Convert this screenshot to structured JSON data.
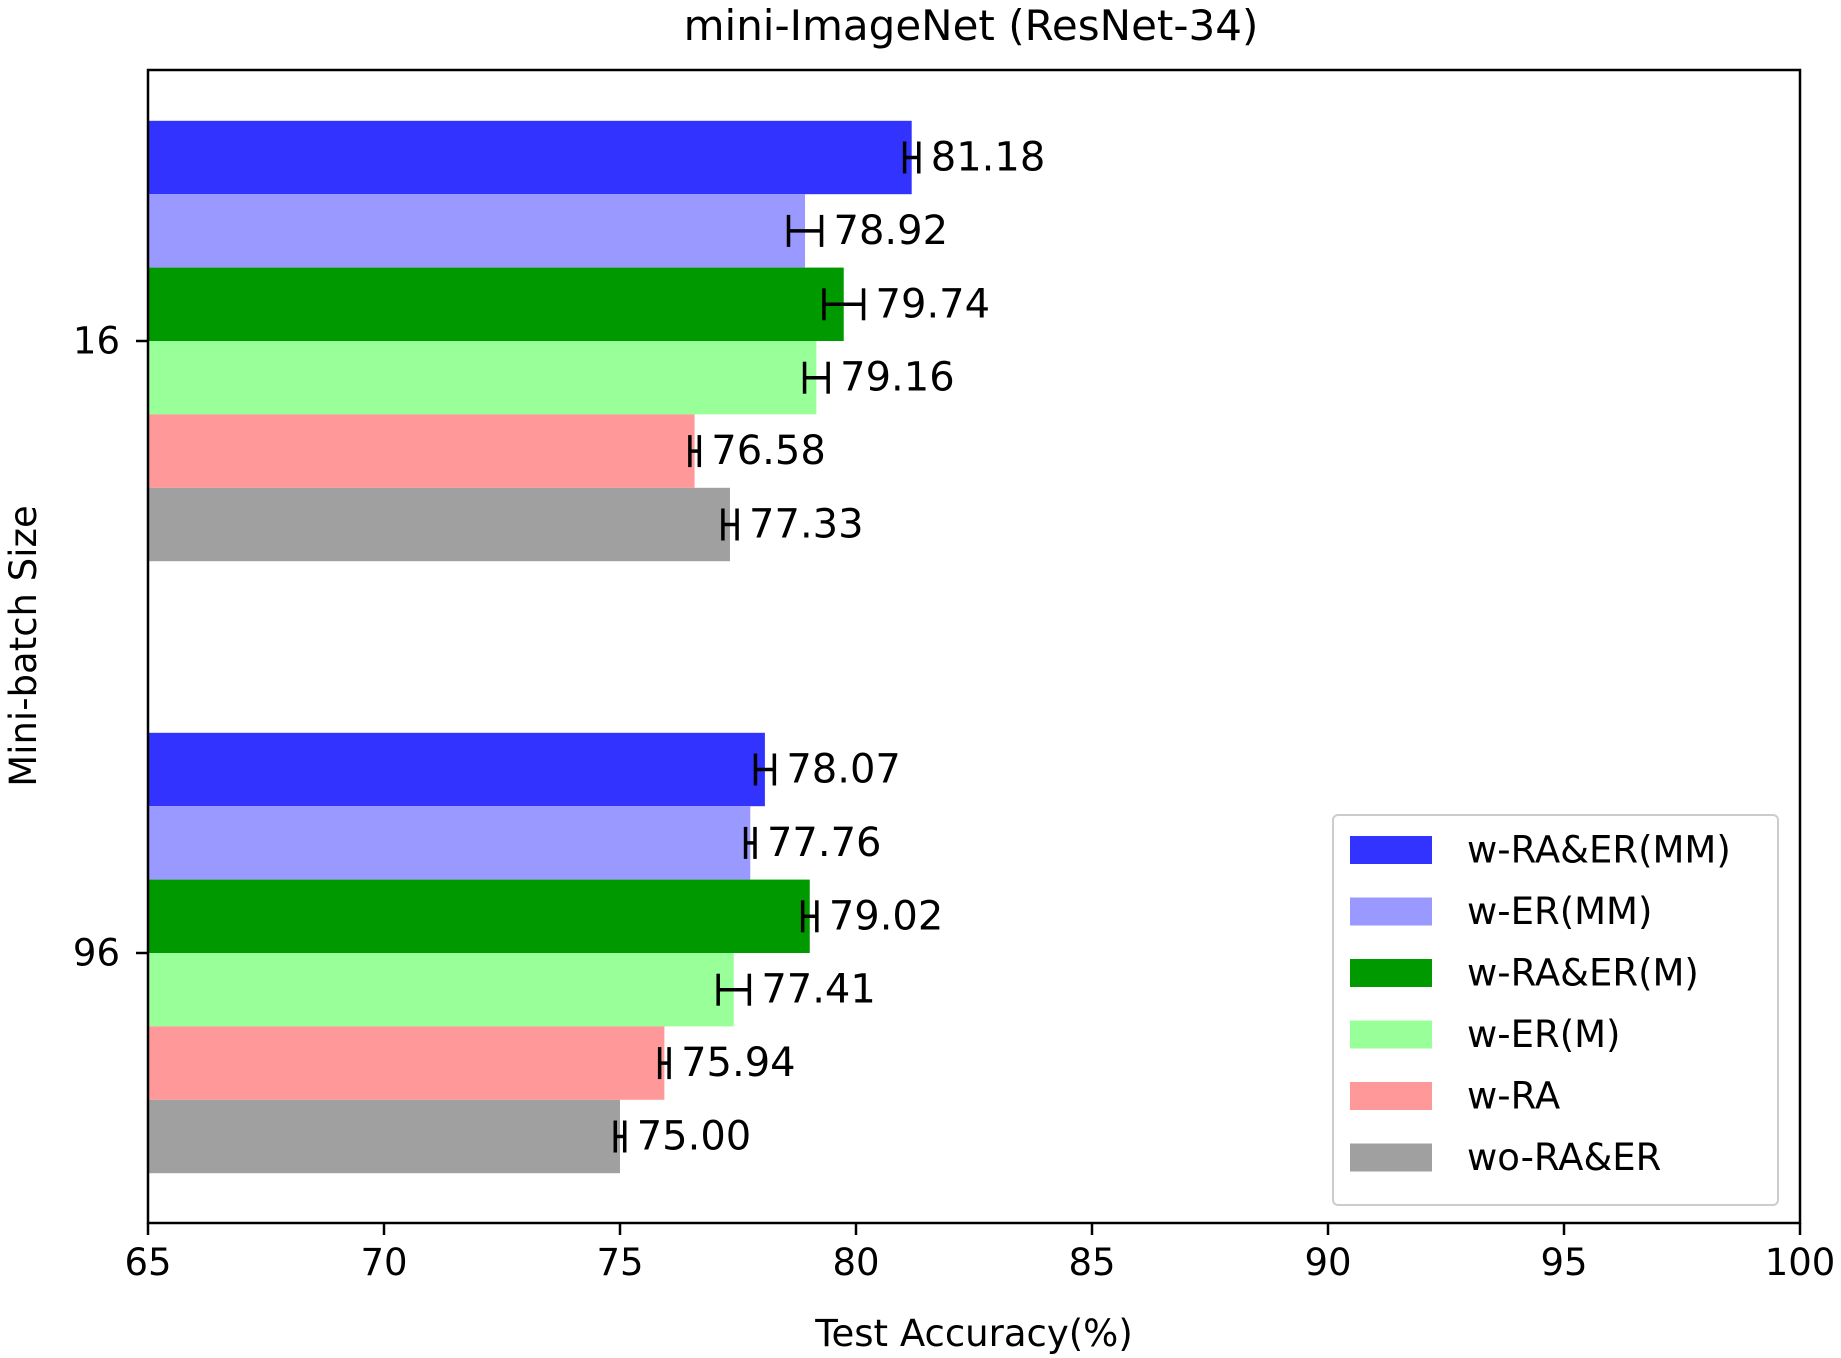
{
  "chart_data": {
    "type": "bar",
    "orientation": "horizontal",
    "title": "mini-ImageNet (ResNet-34)",
    "xlabel": "Test Accuracy(%)",
    "ylabel": "Mini-batch Size",
    "xlim": [
      65,
      100
    ],
    "xticks": [
      65,
      70,
      75,
      80,
      85,
      90,
      95,
      100
    ],
    "categories": [
      "16",
      "96"
    ],
    "grid": false,
    "legend_position": "bottom-right",
    "series": [
      {
        "name": "w-RA&ER(MM)",
        "color": "#3333ff",
        "values": [
          81.18,
          78.07
        ],
        "errors": [
          0.15,
          0.2
        ],
        "labels": [
          "81.18",
          "78.07"
        ]
      },
      {
        "name": "w-ER(MM)",
        "color": "#9999ff",
        "values": [
          78.92,
          77.76
        ],
        "errors": [
          0.35,
          0.1
        ],
        "labels": [
          "78.92",
          "77.76"
        ]
      },
      {
        "name": "w-RA&ER(M)",
        "color": "#009900",
        "values": [
          79.74,
          79.02
        ],
        "errors": [
          0.42,
          0.15
        ],
        "labels": [
          "79.74",
          "79.02"
        ]
      },
      {
        "name": "w-ER(M)",
        "color": "#99ff99",
        "values": [
          79.16,
          77.41
        ],
        "errors": [
          0.25,
          0.33
        ],
        "labels": [
          "79.16",
          "77.41"
        ]
      },
      {
        "name": "w-RA",
        "color": "#ff9999",
        "values": [
          76.58,
          75.94
        ],
        "errors": [
          0.1,
          0.1
        ],
        "labels": [
          "76.58",
          "75.94"
        ]
      },
      {
        "name": "wo-RA&ER",
        "color": "#a0a0a0",
        "values": [
          77.33,
          75.0
        ],
        "errors": [
          0.15,
          0.1
        ],
        "labels": [
          "77.33",
          "75.00"
        ]
      }
    ]
  }
}
